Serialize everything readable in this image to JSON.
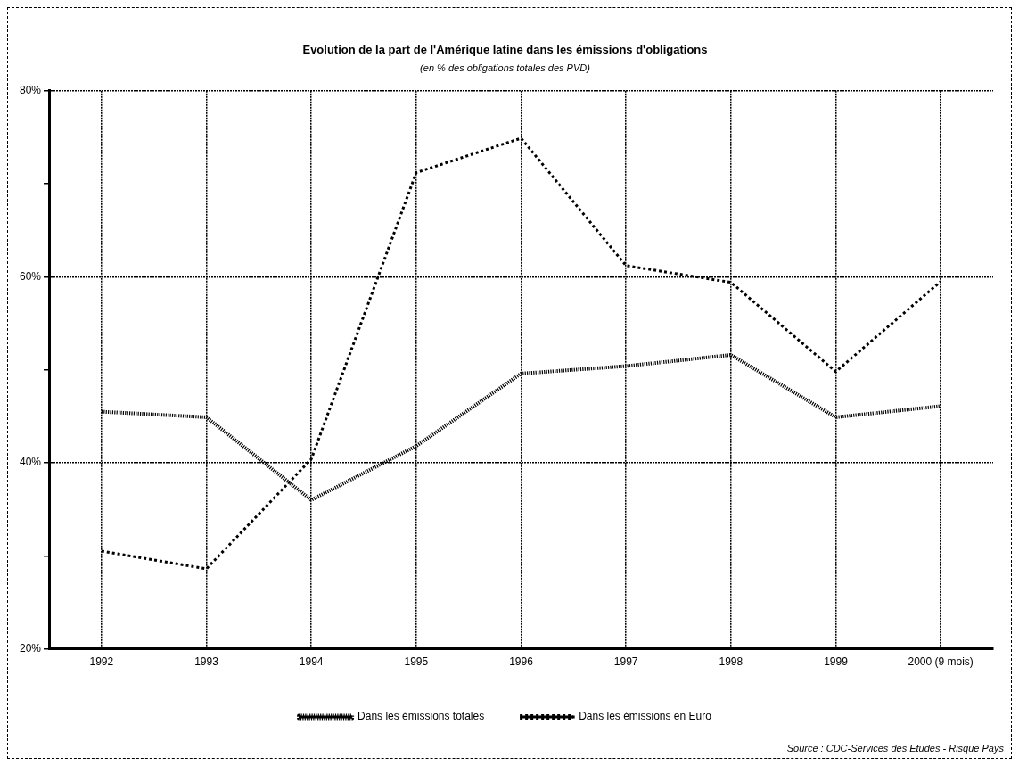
{
  "chart_data": {
    "type": "line",
    "title": "Evolution de la part de l'Amérique latine dans les émissions d'obligations",
    "subtitle": "(en % des obligations totales des PVD)",
    "categories": [
      "1992",
      "1993",
      "1994",
      "1995",
      "1996",
      "1997",
      "1998",
      "1999",
      "2000 (9 mois)"
    ],
    "series": [
      {
        "name": "Dans les émissions totales",
        "color": "#000000",
        "line_style": "dotted",
        "values": [
          45.5,
          44.9,
          36.0,
          41.8,
          49.6,
          50.4,
          51.6,
          44.9,
          46.1
        ]
      },
      {
        "name": "Dans les émissions en Euro",
        "color": "#000000",
        "line_style": "dotted",
        "values": [
          30.5,
          28.6,
          40.4,
          71.2,
          74.9,
          61.2,
          59.4,
          49.8,
          59.5
        ]
      }
    ],
    "ylim": [
      20,
      80
    ],
    "yticks": [
      {
        "value": 20,
        "label": "20%"
      },
      {
        "value": 30,
        "label": null
      },
      {
        "value": 40,
        "label": "40%"
      },
      {
        "value": 50,
        "label": null
      },
      {
        "value": 60,
        "label": "60%"
      },
      {
        "value": 70,
        "label": null
      },
      {
        "value": 80,
        "label": "80%"
      }
    ],
    "grid": true,
    "legend": "bottom",
    "marker": "none",
    "annotations": [
      "Source : CDC-Services des Etudes - Risque Pays"
    ]
  }
}
